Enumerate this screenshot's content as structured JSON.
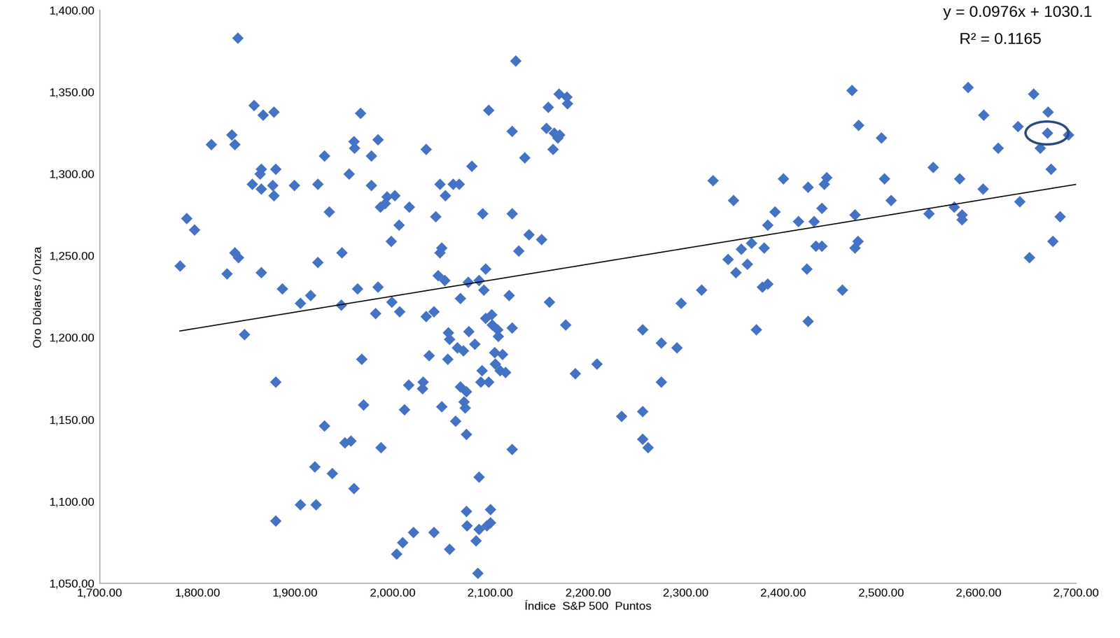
{
  "chart_data": {
    "type": "scatter",
    "x_label": "Índice  S&P 500  Puntos",
    "y_label": "Oro Dólares / Onza",
    "annotations": [
      "y = 0.0976x + 1030.1",
      "R² = 0.1165"
    ],
    "trendline": {
      "slope": 0.0976,
      "intercept": 1030.1
    },
    "highlight": {
      "x": 2670,
      "y": 1325
    },
    "color": "#4472c4",
    "marker": "diamond",
    "grid": false,
    "xlim": [
      1700,
      2700
    ],
    "ylim": [
      1050,
      1400
    ],
    "xticks": [
      {
        "value": 1700,
        "label": "1,700.00"
      },
      {
        "value": 1800,
        "label": "1,800.00"
      },
      {
        "value": 1900,
        "label": "1,900.00"
      },
      {
        "value": 2000,
        "label": "2,000.00"
      },
      {
        "value": 2100,
        "label": "2,100.00"
      },
      {
        "value": 2200,
        "label": "2,200.00"
      },
      {
        "value": 2300,
        "label": "2,300.00"
      },
      {
        "value": 2400,
        "label": "2,400.00"
      },
      {
        "value": 2500,
        "label": "2,500.00"
      },
      {
        "value": 2600,
        "label": "2,600.00"
      },
      {
        "value": 2700,
        "label": "2,700.00"
      }
    ],
    "yticks": [
      {
        "value": 1050,
        "label": "1,050.00"
      },
      {
        "value": 1100,
        "label": "1,100.00"
      },
      {
        "value": 1150,
        "label": "1,150.00"
      },
      {
        "value": 1200,
        "label": "1,200.00"
      },
      {
        "value": 1250,
        "label": "1,250.00"
      },
      {
        "value": 1300,
        "label": "1,300.00"
      },
      {
        "value": 1350,
        "label": "1,350.00"
      },
      {
        "value": 1400,
        "label": "1,400.00"
      }
    ],
    "x": [
      1782,
      1789,
      1797,
      1814,
      1830,
      1835,
      1838,
      1841,
      1838,
      1842,
      1848,
      1858,
      1856,
      1864,
      1865,
      1867,
      1865,
      1865,
      1878,
      1877,
      1878,
      1880,
      1880,
      1880,
      1887,
      1899,
      1905,
      1905,
      1916,
      1920,
      1921,
      1923,
      1923,
      1930,
      1930,
      1935,
      1938,
      1947,
      1948,
      1951,
      1957,
      1955,
      1960,
      1961,
      1960,
      1964,
      1967,
      1968,
      1970,
      1978,
      1978,
      1982,
      1985,
      1985,
      1988,
      1987,
      1992,
      1994,
      1998,
      1999,
      2002,
      2004,
      2006,
      2007,
      2010,
      2012,
      2016,
      2017,
      2021,
      2030,
      2031,
      2034,
      2034,
      2037,
      2042,
      2042,
      2044,
      2046,
      2048,
      2048,
      2050,
      2050,
      2053,
      2054,
      2056,
      2057,
      2058,
      2058,
      2062,
      2064,
      2066,
      2068,
      2069,
      2069,
      2072,
      2073,
      2074,
      2075,
      2075,
      2075,
      2077,
      2076,
      2078,
      2081,
      2084,
      2085,
      2088,
      2088,
      2088,
      2090,
      2091,
      2092,
      2093,
      2095,
      2095,
      2096,
      2087,
      2098,
      2098,
      2100,
      2100,
      2101,
      2102,
      2104,
      2105,
      2107,
      2108,
      2110,
      2112,
      2115,
      2119,
      2122,
      2122,
      2122,
      2122,
      2126,
      2129,
      2135,
      2139,
      2152,
      2159,
      2157,
      2160,
      2164,
      2165,
      2169,
      2170,
      2171,
      2177,
      2178,
      2179,
      2187,
      2209,
      2234,
      2256,
      2256,
      2256,
      2261,
      2275,
      2275,
      2291,
      2295,
      2316,
      2328,
      2343,
      2349,
      2351,
      2357,
      2363,
      2367,
      2372,
      2380,
      2384,
      2378,
      2384,
      2391,
      2400,
      2415,
      2425,
      2424,
      2425,
      2431,
      2433,
      2439,
      2439,
      2442,
      2444,
      2460,
      2470,
      2473,
      2473,
      2476,
      2477,
      2500,
      2503,
      2510,
      2549,
      2553,
      2575,
      2580,
      2583,
      2583,
      2589,
      2604,
      2605,
      2620,
      2640,
      2642,
      2652,
      2656,
      2663,
      2670,
      2671,
      2674,
      2676,
      2683,
      2692
    ],
    "y": [
      1244,
      1273,
      1266,
      1318,
      1239,
      1324,
      1318,
      1383,
      1252,
      1249,
      1202,
      1342,
      1294,
      1300,
      1303,
      1336,
      1291,
      1240,
      1338,
      1293,
      1287,
      1303,
      1173,
      1088,
      1230,
      1293,
      1221,
      1098,
      1226,
      1121,
      1098,
      1246,
      1294,
      1311,
      1146,
      1277,
      1117,
      1220,
      1252,
      1136,
      1137,
      1300,
      1320,
      1316,
      1108,
      1230,
      1337,
      1187,
      1159,
      1311,
      1293,
      1215,
      1321,
      1231,
      1133,
      1280,
      1282,
      1286,
      1259,
      1222,
      1287,
      1068,
      1269,
      1216,
      1075,
      1156,
      1171,
      1280,
      1081,
      1169,
      1173,
      1315,
      1213,
      1189,
      1216,
      1081,
      1274,
      1238,
      1252,
      1294,
      1255,
      1158,
      1235,
      1287,
      1187,
      1203,
      1199,
      1071,
      1294,
      1149,
      1194,
      1294,
      1224,
      1170,
      1192,
      1161,
      1157,
      1167,
      1141,
      1094,
      1234,
      1085,
      1204,
      1305,
      1196,
      1076,
      1235,
      1115,
      1083,
      1173,
      1180,
      1276,
      1229,
      1242,
      1212,
      1085,
      1056,
      1173,
      1339,
      1087,
      1095,
      1214,
      1208,
      1191,
      1184,
      1205,
      1201,
      1180,
      1190,
      1179,
      1226,
      1326,
      1276,
      1132,
      1206,
      1369,
      1253,
      1310,
      1263,
      1260,
      1341,
      1328,
      1222,
      1315,
      1325,
      1322,
      1349,
      1324,
      1208,
      1347,
      1343,
      1178,
      1184,
      1152,
      1205,
      1155,
      1138,
      1133,
      1197,
      1173,
      1194,
      1221,
      1229,
      1296,
      1248,
      1284,
      1240,
      1254,
      1245,
      1258,
      1205,
      1255,
      1269,
      1231,
      1233,
      1277,
      1297,
      1271,
      1292,
      1242,
      1210,
      1271,
      1256,
      1256,
      1279,
      1294,
      1298,
      1229,
      1351,
      1275,
      1255,
      1259,
      1330,
      1322,
      1297,
      1284,
      1276,
      1304,
      1280,
      1297,
      1275,
      1272,
      1353,
      1291,
      1336,
      1316,
      1329,
      1283,
      1249,
      1349,
      1316,
      1325,
      1338,
      1303,
      1259,
      1274,
      1324
    ]
  }
}
